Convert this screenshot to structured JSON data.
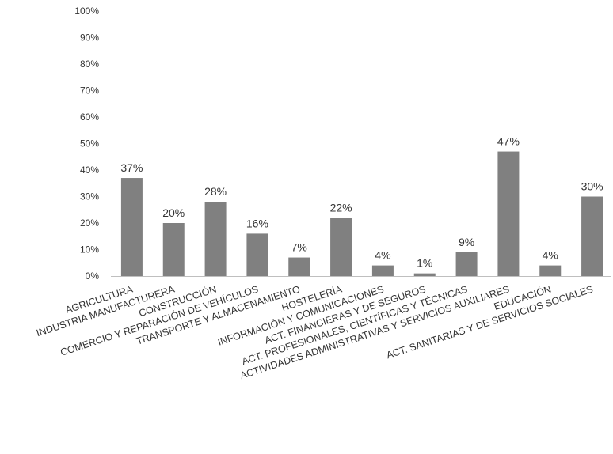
{
  "chart_data": {
    "type": "bar",
    "title": "",
    "xlabel": "",
    "ylabel": "",
    "ylim": [
      0,
      100
    ],
    "y_ticks": [
      "0%",
      "10%",
      "20%",
      "30%",
      "40%",
      "50%",
      "60%",
      "70%",
      "80%",
      "90%",
      "100%"
    ],
    "grid": false,
    "legend": "none",
    "bar_color": "#808080",
    "categories": [
      "AGRICULTURA",
      "INDUSTRIA MANUFACTURERA",
      "CONSTRUCCIÓN",
      "COMERCIO Y REPARACIÓN DE VEHÍCULOS",
      "TRANSPORTE Y ALMACENAMIENTO",
      "HOSTELERÍA",
      "INFORMACIÓN Y COMUNICACIONES",
      "ACT. FINANCIERAS Y DE SEGUROS",
      "ACT. PROFESIONALES, CIENTÍFICAS Y TÉCNICAS",
      "ACTIVIDADES ADMINISTRATIVAS Y SERVICIOS AUXILIARES",
      "EDUCACIÓN",
      "ACT. SANITARIAS Y DE SERVICIOS SOCIALES"
    ],
    "values": [
      37,
      20,
      28,
      16,
      7,
      22,
      4,
      1,
      9,
      47,
      4,
      30
    ],
    "data_labels": [
      "37%",
      "20%",
      "28%",
      "16%",
      "7%",
      "22%",
      "4%",
      "1%",
      "9%",
      "47%",
      "4%",
      "30%"
    ]
  }
}
